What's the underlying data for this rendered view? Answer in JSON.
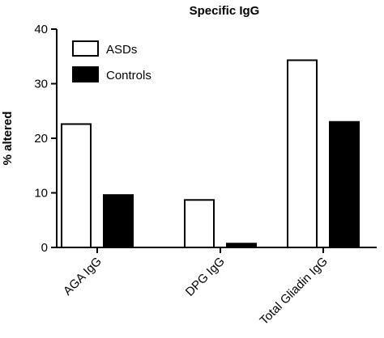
{
  "chart_data": {
    "type": "bar",
    "title": "Specific IgG",
    "xlabel": "",
    "ylabel": "% altered",
    "categories": [
      "AGA IgG",
      "DPG IgG",
      "Total Gliadin IgG"
    ],
    "series": [
      {
        "name": "ASDs",
        "values": [
          22.6,
          8.7,
          34.3
        ],
        "color": "#ffffff"
      },
      {
        "name": "Controls",
        "values": [
          9.6,
          0.7,
          23.0
        ],
        "color": "#000000"
      }
    ],
    "ylim": [
      0,
      40
    ],
    "yticks": [
      0,
      10,
      20,
      30,
      40
    ],
    "grid": false,
    "legend_position": "top-left"
  }
}
